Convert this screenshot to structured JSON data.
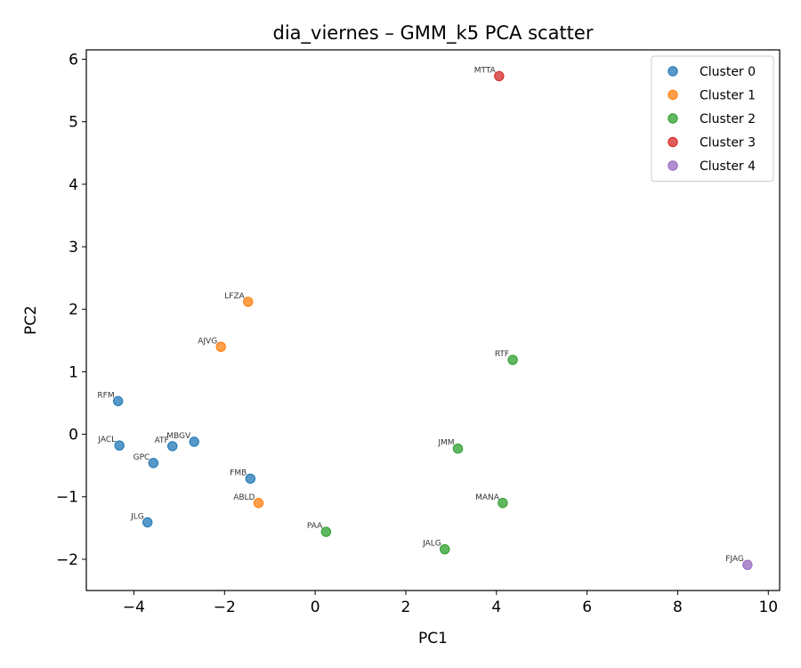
{
  "chart_data": {
    "type": "scatter",
    "title": "dia_viernes – GMM_k5 PCA scatter",
    "xlabel": "PC1",
    "ylabel": "PC2",
    "xlim": [
      -5.05,
      10.25
    ],
    "ylim": [
      -2.5,
      6.15
    ],
    "xticks": [
      -4,
      -2,
      0,
      2,
      4,
      6,
      8,
      10
    ],
    "yticks": [
      -2,
      -1,
      0,
      1,
      2,
      3,
      4,
      5,
      6
    ],
    "grid": false,
    "legend_position": "top-right",
    "series": [
      {
        "name": "Cluster 0",
        "color": "#1f77b4",
        "points": [
          {
            "x": -4.35,
            "y": 0.53,
            "label": "RFM"
          },
          {
            "x": -4.32,
            "y": -0.18,
            "label": "JACL"
          },
          {
            "x": -3.57,
            "y": -0.46,
            "label": "GPC"
          },
          {
            "x": -3.15,
            "y": -0.19,
            "label": "ATF"
          },
          {
            "x": -2.67,
            "y": -0.12,
            "label": "MBGV"
          },
          {
            "x": -1.43,
            "y": -0.71,
            "label": "FMB"
          },
          {
            "x": -3.7,
            "y": -1.41,
            "label": "JLG"
          }
        ]
      },
      {
        "name": "Cluster 1",
        "color": "#ff7f0e",
        "points": [
          {
            "x": -1.48,
            "y": 2.12,
            "label": "LFZA"
          },
          {
            "x": -2.08,
            "y": 1.4,
            "label": "AJVG"
          },
          {
            "x": -1.25,
            "y": -1.1,
            "label": "ABLD"
          }
        ]
      },
      {
        "name": "Cluster 2",
        "color": "#2ca02c",
        "points": [
          {
            "x": 4.36,
            "y": 1.19,
            "label": "RTF"
          },
          {
            "x": 3.15,
            "y": -0.23,
            "label": "JMM"
          },
          {
            "x": 4.14,
            "y": -1.1,
            "label": "MANA"
          },
          {
            "x": 0.24,
            "y": -1.56,
            "label": "PAA"
          },
          {
            "x": 2.86,
            "y": -1.84,
            "label": "JALG"
          }
        ]
      },
      {
        "name": "Cluster 3",
        "color": "#d62728",
        "points": [
          {
            "x": 4.06,
            "y": 5.73,
            "label": "MTTA"
          }
        ]
      },
      {
        "name": "Cluster 4",
        "color": "#9467bd",
        "points": [
          {
            "x": 9.54,
            "y": -2.09,
            "label": "FJAG"
          }
        ]
      }
    ]
  }
}
